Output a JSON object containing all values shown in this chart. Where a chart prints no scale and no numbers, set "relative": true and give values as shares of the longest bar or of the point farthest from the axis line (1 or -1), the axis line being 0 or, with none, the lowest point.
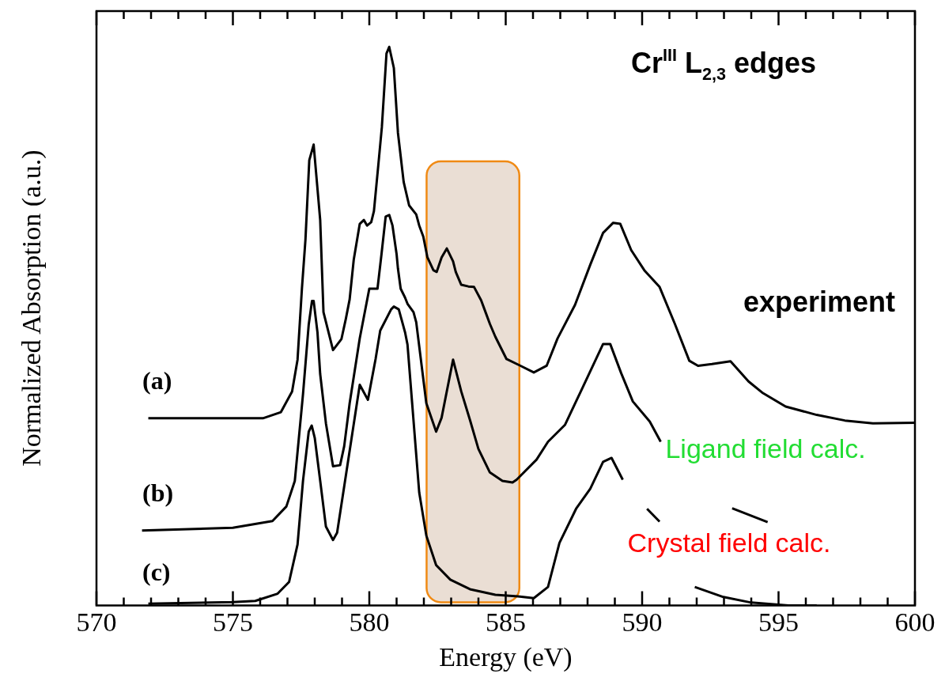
{
  "chart_data": {
    "type": "line",
    "title": "Cr$^{III}$ L$_{2,3}$ edges",
    "xlabel": "Energy (eV)",
    "ylabel": "Normalized Absorption (a.u.)",
    "relative": true,
    "xlim": [
      570,
      600
    ],
    "xticks": [
      570,
      {
        "value": 571,
        "label": null
      },
      {
        "value": 572,
        "label": null
      },
      {
        "value": 573,
        "label": null
      },
      {
        "value": 574,
        "label": null
      },
      575,
      {
        "value": 576,
        "label": null
      },
      {
        "value": 577,
        "label": null
      },
      {
        "value": 578,
        "label": null
      },
      {
        "value": 579,
        "label": null
      },
      580,
      {
        "value": 581,
        "label": null
      },
      {
        "value": 582,
        "label": null
      },
      {
        "value": 583,
        "label": null
      },
      {
        "value": 584,
        "label": null
      },
      585,
      {
        "value": 586,
        "label": null
      },
      {
        "value": 587,
        "label": null
      },
      {
        "value": 588,
        "label": null
      },
      {
        "value": 589,
        "label": null
      },
      590,
      {
        "value": 591,
        "label": null
      },
      {
        "value": 592,
        "label": null
      },
      {
        "value": 593,
        "label": null
      },
      {
        "value": 594,
        "label": null
      },
      595,
      {
        "value": 596,
        "label": null
      },
      {
        "value": 597,
        "label": null
      },
      {
        "value": 598,
        "label": null
      },
      {
        "value": 599,
        "label": null
      },
      600
    ],
    "grid": false,
    "legend": false,
    "marker": "none",
    "line_style": "solid",
    "bands": [
      {
        "axis": "x",
        "from": 582.1,
        "to": 585.5,
        "color": "#e6d8cc"
      }
    ],
    "annotations": [
      "(a)",
      "(b)",
      "(c)"
    ],
    "series": [
      {
        "name": "experiment",
        "color": "#000000",
        "x": [
          571.9,
          576.1,
          576.76,
          577.17,
          577.37,
          577.53,
          577.66,
          577.8,
          577.96,
          578.2,
          578.32,
          578.67,
          578.98,
          579.14,
          579.28,
          579.43,
          579.65,
          579.8,
          579.92,
          580.07,
          580.17,
          580.33,
          580.46,
          580.63,
          580.73,
          580.9,
          581.05,
          581.26,
          581.46,
          581.72,
          581.83,
          581.98,
          582.13,
          582.35,
          582.47,
          582.65,
          582.84,
          583.07,
          583.17,
          583.37,
          583.63,
          583.84,
          584.1,
          584.26,
          584.42,
          584.62,
          585.03,
          585.5,
          586.03,
          586.5,
          586.9,
          587.54,
          588.1,
          588.57,
          588.94,
          589.2,
          589.6,
          590.08,
          590.64,
          591.2,
          591.73,
          592.05,
          592.56,
          593.24,
          593.9,
          594.43,
          595.26,
          596.4,
          597.43,
          598.46,
          600
        ],
        "values": [
          0.335,
          0.335,
          0.346,
          0.383,
          0.44,
          0.567,
          0.655,
          0.797,
          0.825,
          0.69,
          0.525,
          0.457,
          0.477,
          0.513,
          0.548,
          0.619,
          0.683,
          0.69,
          0.68,
          0.686,
          0.706,
          0.788,
          0.856,
          0.988,
          1.0,
          0.962,
          0.846,
          0.758,
          0.716,
          0.7,
          0.68,
          0.66,
          0.623,
          0.6,
          0.597,
          0.623,
          0.639,
          0.616,
          0.597,
          0.574,
          0.571,
          0.57,
          0.546,
          0.525,
          0.504,
          0.481,
          0.441,
          0.43,
          0.417,
          0.429,
          0.478,
          0.538,
          0.61,
          0.667,
          0.685,
          0.683,
          0.636,
          0.6,
          0.57,
          0.504,
          0.438,
          0.429,
          0.432,
          0.437,
          0.401,
          0.38,
          0.356,
          0.341,
          0.331,
          0.326,
          0.327
        ]
      },
      {
        "name": "Ligand field calc.",
        "color": "#000000",
        "x": [
          571.67,
          575,
          576.45,
          576.96,
          577.27,
          577.57,
          577.78,
          577.9,
          577.96,
          578.1,
          578.2,
          578.41,
          578.67,
          578.93,
          579.08,
          579.28,
          579.65,
          580.0,
          580.3,
          580.45,
          580.6,
          580.73,
          580.85,
          581.0,
          581.05,
          581.15,
          581.31,
          581.4,
          581.62,
          581.72,
          582.09,
          582.45,
          582.65,
          583.07,
          583.37,
          583.69,
          584.0,
          584.42,
          584.88,
          585.25,
          585.4,
          586.13,
          586.55,
          587.17,
          587.78,
          588.57,
          588.83,
          589.23,
          589.66,
          590.28,
          590.68,
          592.0,
          593.3,
          594.6
        ],
        "values": [
          0.134,
          0.139,
          0.151,
          0.177,
          0.223,
          0.378,
          0.503,
          0.545,
          0.545,
          0.489,
          0.414,
          0.326,
          0.249,
          0.251,
          0.285,
          0.362,
          0.478,
          0.567,
          0.567,
          0.63,
          0.696,
          0.699,
          0.68,
          0.629,
          0.603,
          0.567,
          0.551,
          0.54,
          0.525,
          0.507,
          0.362,
          0.311,
          0.336,
          0.44,
          0.383,
          0.332,
          0.28,
          0.238,
          0.223,
          0.22,
          0.225,
          0.261,
          0.293,
          0.323,
          0.386,
          0.468,
          0.468,
          0.416,
          0.365,
          0.329,
          0.293,
          null,
          0.174,
          0.149
        ]
      },
      {
        "name": "Crystal field calc.",
        "color": "#000000",
        "x": [
          571.9,
          575,
          575.82,
          576.64,
          577.06,
          577.37,
          577.57,
          577.78,
          577.89,
          578.0,
          578.2,
          578.41,
          578.67,
          578.82,
          579.08,
          579.65,
          579.95,
          580.23,
          580.4,
          580.8,
          580.9,
          581.08,
          581.31,
          581.4,
          581.83,
          582.09,
          582.45,
          582.97,
          583.69,
          584.62,
          585.45,
          586.03,
          586.55,
          586.97,
          587.58,
          588.1,
          588.57,
          588.88,
          589.29,
          589.7,
          590.18,
          590.64,
          591.3,
          591.93,
          592.98,
          594.0,
          595.36,
          596.4
        ],
        "values": [
          0.003,
          0.006,
          0.008,
          0.021,
          0.042,
          0.109,
          0.223,
          0.311,
          0.322,
          0.3,
          0.223,
          0.141,
          0.117,
          0.13,
          0.213,
          0.395,
          0.368,
          0.441,
          0.492,
          0.53,
          0.535,
          0.53,
          0.489,
          0.467,
          0.202,
          0.125,
          0.072,
          0.046,
          0.029,
          0.019,
          0.016,
          0.013,
          0.033,
          0.112,
          0.173,
          0.209,
          0.257,
          0.264,
          0.225,
          null,
          0.173,
          0.15,
          null,
          0.033,
          0.015,
          0.005,
          0.0,
          0.0
        ]
      }
    ]
  }
}
